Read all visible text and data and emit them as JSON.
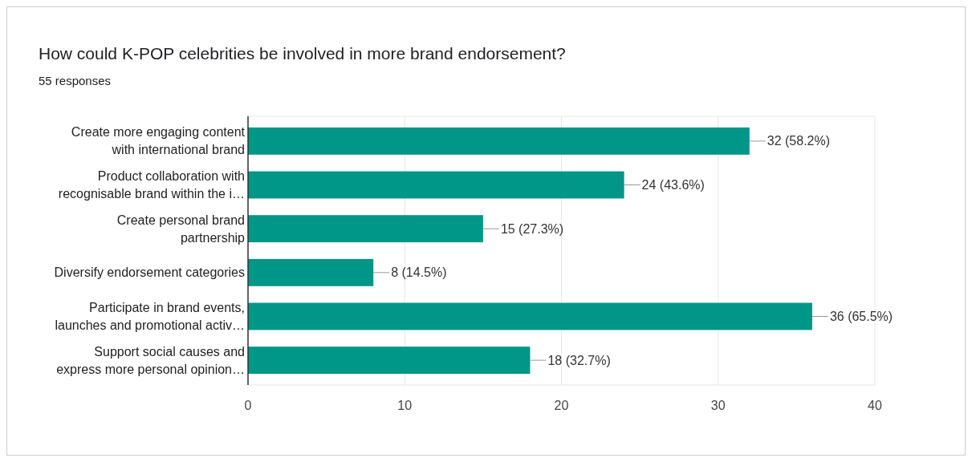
{
  "chart_data": {
    "type": "bar",
    "orientation": "horizontal",
    "title": "How could K-POP celebrities be involved in more brand endorsement?",
    "subtitle": "55 responses",
    "categories": [
      "Create more engaging content with international brand",
      "Product collaboration with recognisable brand within the i…",
      "Create personal brand partnership",
      "Diversify endorsement categories",
      "Participate in brand events, launches and promotional activ…",
      "Support social causes and express more personal opinion…"
    ],
    "values": [
      32,
      24,
      15,
      8,
      36,
      18
    ],
    "value_labels": [
      "32 (58.2%)",
      "24 (43.6%)",
      "15 (27.3%)",
      "8 (14.5%)",
      "36 (65.5%)",
      "18 (32.7%)"
    ],
    "color": "#009688",
    "xlim": [
      0,
      40
    ],
    "xticks": [
      0,
      10,
      20,
      30,
      40
    ],
    "grid": "x"
  }
}
